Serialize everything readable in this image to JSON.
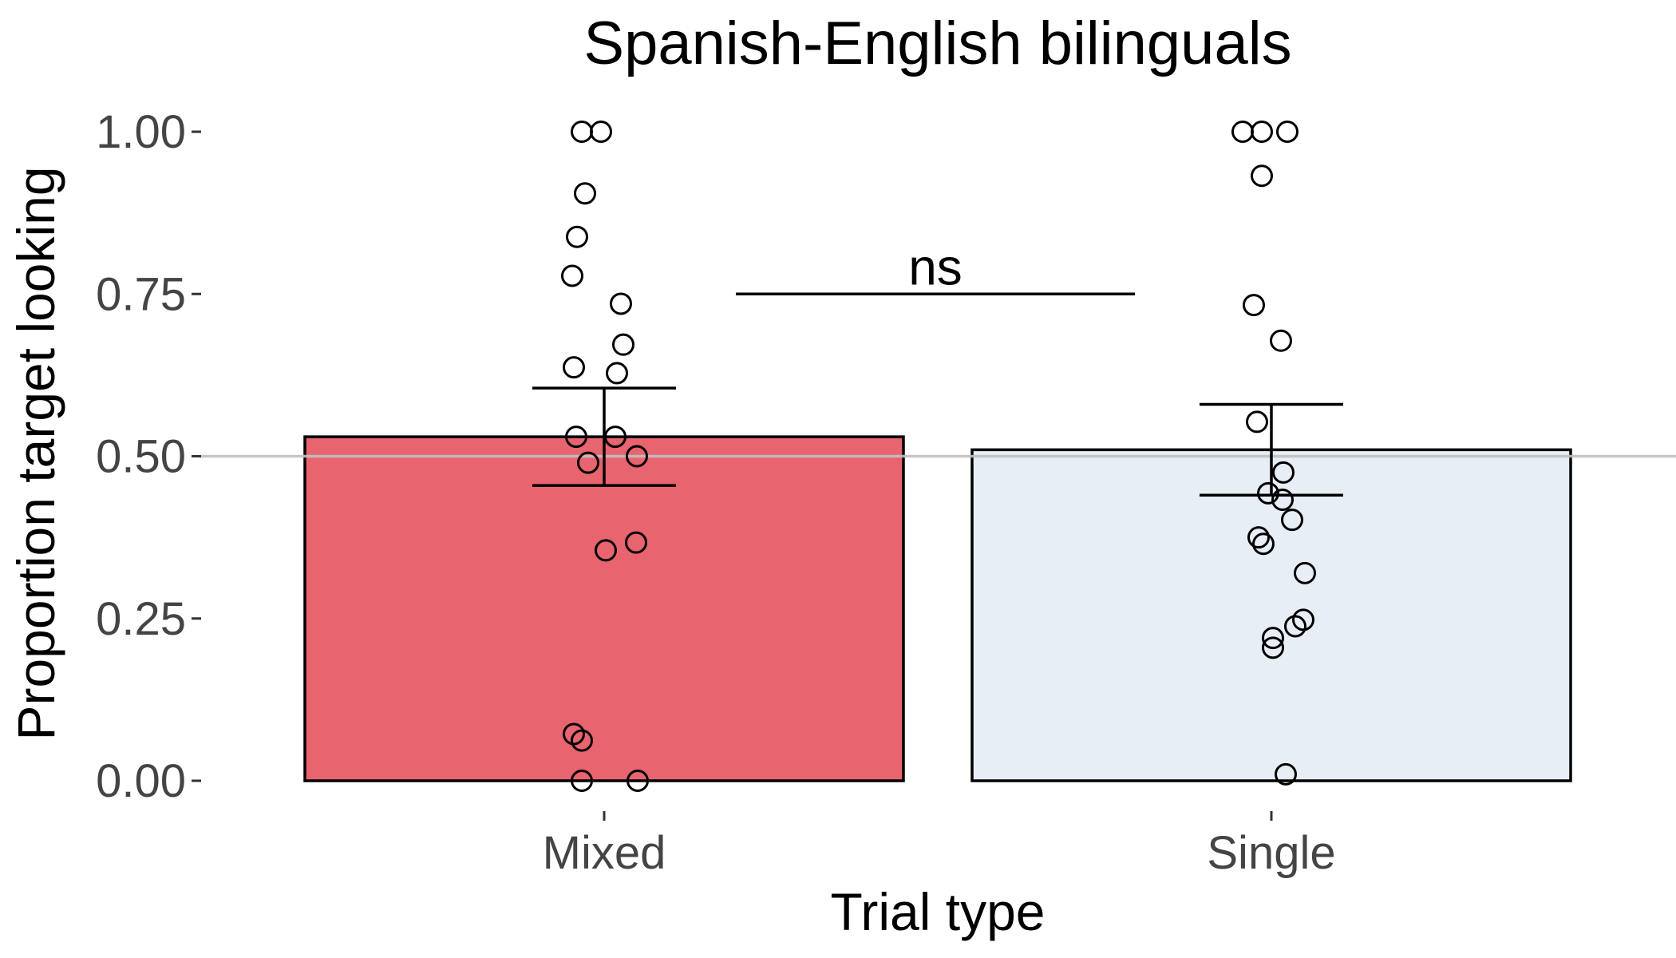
{
  "chart_data": {
    "type": "bar",
    "title": "Spanish-English bilinguals",
    "xlabel": "Trial type",
    "ylabel": "Proportion target looking",
    "categories": [
      "Mixed",
      "Single"
    ],
    "values": [
      0.53,
      0.51
    ],
    "error_bars": [
      {
        "low": 0.455,
        "high": 0.605
      },
      {
        "low": 0.44,
        "high": 0.58
      }
    ],
    "ylim": [
      0,
      1
    ],
    "yticks": [
      "0.00",
      "0.25",
      "0.50",
      "0.75",
      "1.00"
    ],
    "reference_line": 0.5,
    "grid": false,
    "colors": {
      "Mixed": "#e8646f",
      "Single": "#e7eef6",
      "points": "#000000",
      "reference_line": "#c0c0c0"
    },
    "points": {
      "Mixed": [
        1.0,
        1.0,
        0.905,
        0.838,
        0.778,
        0.735,
        0.672,
        0.637,
        0.628,
        0.53,
        0.53,
        0.5,
        0.49,
        0.367,
        0.355,
        0.072,
        0.062,
        0.0,
        0.0
      ],
      "Single": [
        1.0,
        1.0,
        1.0,
        0.932,
        0.733,
        0.678,
        0.553,
        0.475,
        0.443,
        0.433,
        0.402,
        0.375,
        0.365,
        0.32,
        0.248,
        0.238,
        0.22,
        0.205,
        0.01
      ]
    },
    "annotation": {
      "text": "ns",
      "y": 0.75
    }
  }
}
